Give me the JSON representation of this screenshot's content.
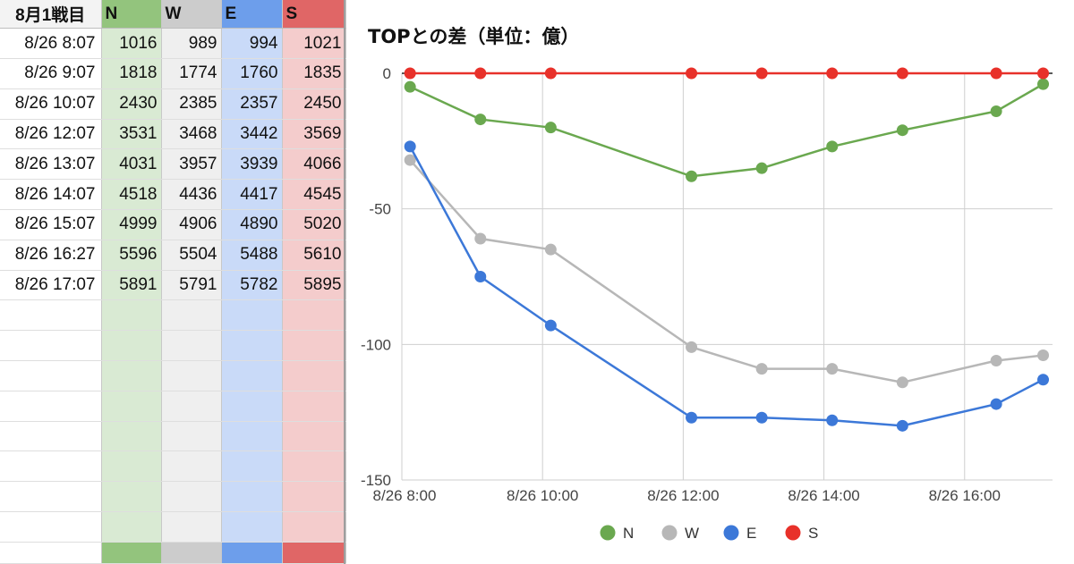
{
  "sheet": {
    "headers": [
      "8月1戦目",
      "N",
      "W",
      "E",
      "S"
    ],
    "rows": [
      [
        "8/26 8:07",
        "1016",
        "989",
        "994",
        "1021"
      ],
      [
        "8/26 9:07",
        "1818",
        "1774",
        "1760",
        "1835"
      ],
      [
        "8/26 10:07",
        "2430",
        "2385",
        "2357",
        "2450"
      ],
      [
        "8/26 12:07",
        "3531",
        "3468",
        "3442",
        "3569"
      ],
      [
        "8/26 13:07",
        "4031",
        "3957",
        "3939",
        "4066"
      ],
      [
        "8/26 14:07",
        "4518",
        "4436",
        "4417",
        "4545"
      ],
      [
        "8/26 15:07",
        "4999",
        "4906",
        "4890",
        "5020"
      ],
      [
        "8/26 16:27",
        "5596",
        "5504",
        "5488",
        "5610"
      ],
      [
        "8/26 17:07",
        "5891",
        "5791",
        "5782",
        "5895"
      ]
    ],
    "empty_rows": 9,
    "colors": {
      "N": "#93c47d",
      "W": "#cccccc",
      "E": "#6d9eeb",
      "S": "#e06666"
    }
  },
  "chart_data": {
    "type": "line",
    "title": "TOPとの差（単位：億）",
    "xlabel": "",
    "ylabel": "",
    "x": [
      "8/26 8:07",
      "8/26 9:07",
      "8/26 10:07",
      "8/26 12:07",
      "8/26 13:07",
      "8/26 14:07",
      "8/26 15:07",
      "8/26 16:27",
      "8/26 17:07"
    ],
    "x_hours": [
      8.1167,
      9.1167,
      10.1167,
      12.1167,
      13.1167,
      14.1167,
      15.1167,
      16.45,
      17.1167
    ],
    "xlim_hours": [
      8,
      17.25
    ],
    "x_ticks": [
      {
        "hour": 8,
        "label": "8/26 8:00"
      },
      {
        "hour": 10,
        "label": "8/26 10:00"
      },
      {
        "hour": 12,
        "label": "8/26 12:00"
      },
      {
        "hour": 14,
        "label": "8/26 14:00"
      },
      {
        "hour": 16,
        "label": "8/26 16:00"
      }
    ],
    "ylim": [
      -150,
      0
    ],
    "y_ticks": [
      0,
      -50,
      -100,
      -150
    ],
    "grid": true,
    "legend_position": "bottom",
    "series": [
      {
        "name": "N",
        "color": "#6aa84f",
        "values": [
          -5,
          -17,
          -20,
          -38,
          -35,
          -27,
          -21,
          -14,
          -4
        ]
      },
      {
        "name": "W",
        "color": "#b7b7b7",
        "values": [
          -32,
          -61,
          -65,
          -101,
          -109,
          -109,
          -114,
          -106,
          -104
        ]
      },
      {
        "name": "E",
        "color": "#3c78d8",
        "values": [
          -27,
          -75,
          -93,
          -127,
          -127,
          -128,
          -130,
          -122,
          -113
        ]
      },
      {
        "name": "S",
        "color": "#e8312a",
        "values": [
          0,
          0,
          0,
          0,
          0,
          0,
          0,
          0,
          0
        ]
      }
    ]
  }
}
